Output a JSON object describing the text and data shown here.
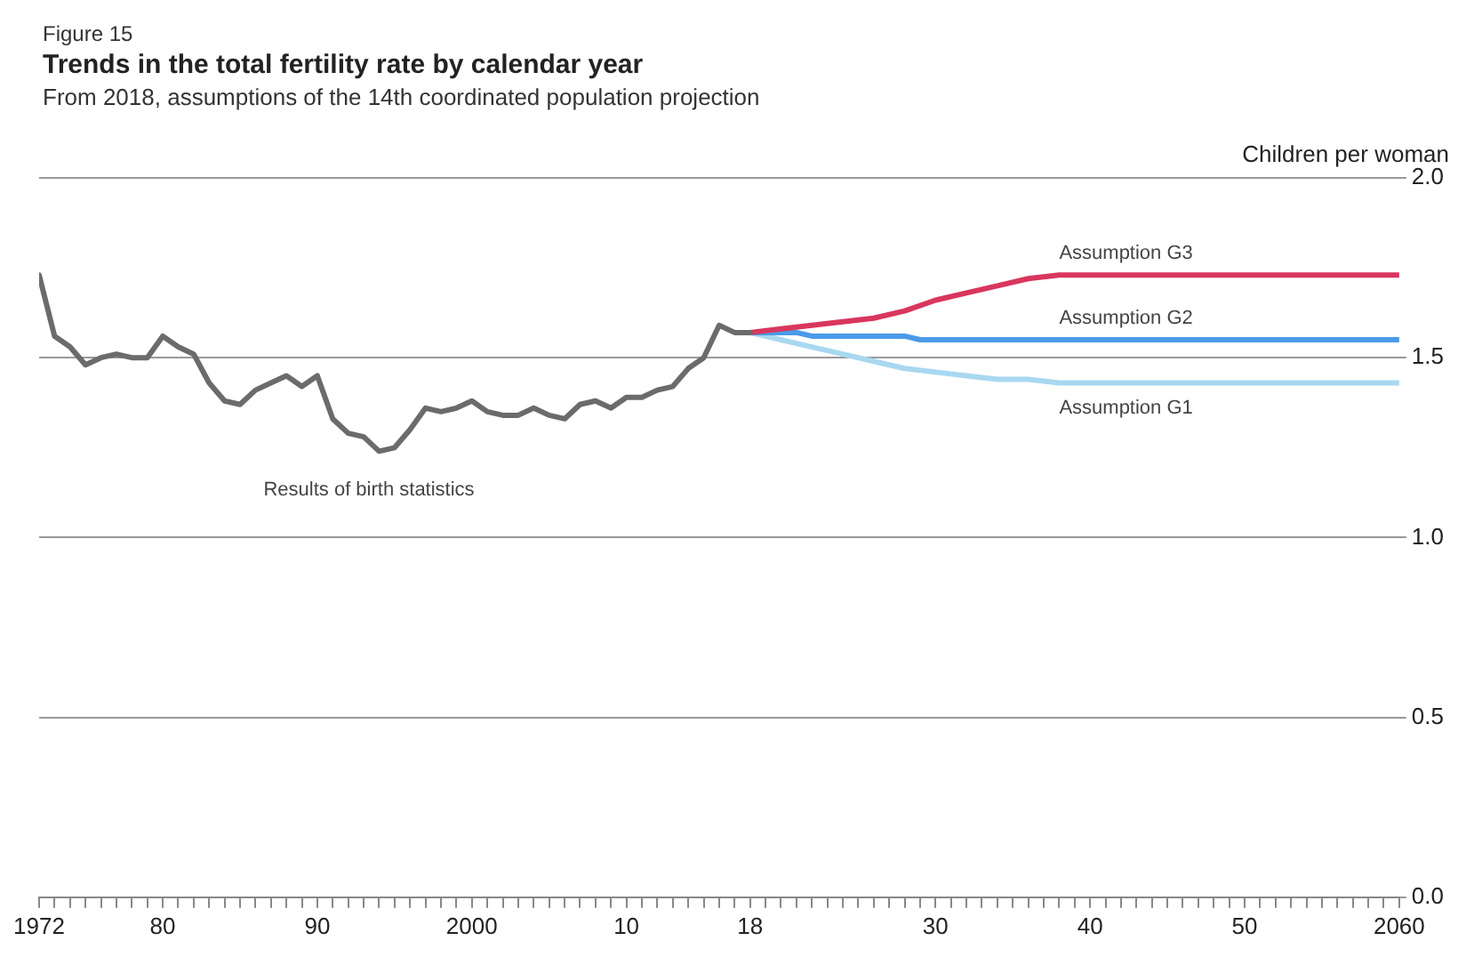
{
  "chart_data": {
    "type": "line",
    "title": "Trends in the total fertility rate by calendar year",
    "subtitle": "From 2018, assumptions of the 14th coordinated population projection",
    "annotations": [
      "Figure 15"
    ],
    "ylabel": "Children per woman",
    "xlim": [
      1972,
      2060
    ],
    "ylim": [
      0,
      2.0
    ],
    "xticks": [
      {
        "value": 1972,
        "label": "1972"
      },
      {
        "value": 1973,
        "label": null
      },
      {
        "value": 1974,
        "label": null
      },
      {
        "value": 1975,
        "label": null
      },
      {
        "value": 1976,
        "label": null
      },
      {
        "value": 1977,
        "label": null
      },
      {
        "value": 1978,
        "label": null
      },
      {
        "value": 1979,
        "label": null
      },
      {
        "value": 1980,
        "label": "80"
      },
      {
        "value": 1981,
        "label": null
      },
      {
        "value": 1982,
        "label": null
      },
      {
        "value": 1983,
        "label": null
      },
      {
        "value": 1984,
        "label": null
      },
      {
        "value": 1985,
        "label": null
      },
      {
        "value": 1986,
        "label": null
      },
      {
        "value": 1987,
        "label": null
      },
      {
        "value": 1988,
        "label": null
      },
      {
        "value": 1989,
        "label": null
      },
      {
        "value": 1990,
        "label": "90"
      },
      {
        "value": 1991,
        "label": null
      },
      {
        "value": 1992,
        "label": null
      },
      {
        "value": 1993,
        "label": null
      },
      {
        "value": 1994,
        "label": null
      },
      {
        "value": 1995,
        "label": null
      },
      {
        "value": 1996,
        "label": null
      },
      {
        "value": 1997,
        "label": null
      },
      {
        "value": 1998,
        "label": null
      },
      {
        "value": 1999,
        "label": null
      },
      {
        "value": 2000,
        "label": "2000"
      },
      {
        "value": 2001,
        "label": null
      },
      {
        "value": 2002,
        "label": null
      },
      {
        "value": 2003,
        "label": null
      },
      {
        "value": 2004,
        "label": null
      },
      {
        "value": 2005,
        "label": null
      },
      {
        "value": 2006,
        "label": null
      },
      {
        "value": 2007,
        "label": null
      },
      {
        "value": 2008,
        "label": null
      },
      {
        "value": 2009,
        "label": null
      },
      {
        "value": 2010,
        "label": "10"
      },
      {
        "value": 2011,
        "label": null
      },
      {
        "value": 2012,
        "label": null
      },
      {
        "value": 2013,
        "label": null
      },
      {
        "value": 2014,
        "label": null
      },
      {
        "value": 2015,
        "label": null
      },
      {
        "value": 2016,
        "label": null
      },
      {
        "value": 2017,
        "label": null
      },
      {
        "value": 2018,
        "label": "18"
      },
      {
        "value": 2019,
        "label": null
      },
      {
        "value": 2020,
        "label": null
      },
      {
        "value": 2021,
        "label": null
      },
      {
        "value": 2022,
        "label": null
      },
      {
        "value": 2023,
        "label": null
      },
      {
        "value": 2024,
        "label": null
      },
      {
        "value": 2025,
        "label": null
      },
      {
        "value": 2026,
        "label": null
      },
      {
        "value": 2027,
        "label": null
      },
      {
        "value": 2028,
        "label": null
      },
      {
        "value": 2029,
        "label": null
      },
      {
        "value": 2030,
        "label": "30"
      },
      {
        "value": 2031,
        "label": null
      },
      {
        "value": 2032,
        "label": null
      },
      {
        "value": 2033,
        "label": null
      },
      {
        "value": 2034,
        "label": null
      },
      {
        "value": 2035,
        "label": null
      },
      {
        "value": 2036,
        "label": null
      },
      {
        "value": 2037,
        "label": null
      },
      {
        "value": 2038,
        "label": null
      },
      {
        "value": 2039,
        "label": null
      },
      {
        "value": 2040,
        "label": "40"
      },
      {
        "value": 2041,
        "label": null
      },
      {
        "value": 2042,
        "label": null
      },
      {
        "value": 2043,
        "label": null
      },
      {
        "value": 2044,
        "label": null
      },
      {
        "value": 2045,
        "label": null
      },
      {
        "value": 2046,
        "label": null
      },
      {
        "value": 2047,
        "label": null
      },
      {
        "value": 2048,
        "label": null
      },
      {
        "value": 2049,
        "label": null
      },
      {
        "value": 2050,
        "label": "50"
      },
      {
        "value": 2051,
        "label": null
      },
      {
        "value": 2052,
        "label": null
      },
      {
        "value": 2053,
        "label": null
      },
      {
        "value": 2054,
        "label": null
      },
      {
        "value": 2055,
        "label": null
      },
      {
        "value": 2056,
        "label": null
      },
      {
        "value": 2057,
        "label": null
      },
      {
        "value": 2058,
        "label": null
      },
      {
        "value": 2059,
        "label": null
      },
      {
        "value": 2060,
        "label": "2060"
      }
    ],
    "yticks": [
      {
        "value": 0,
        "label": "0.0"
      },
      {
        "value": 0.5,
        "label": "0.5"
      },
      {
        "value": 1.0,
        "label": "1.0"
      },
      {
        "value": 1.5,
        "label": "1.5"
      },
      {
        "value": 2.0,
        "label": "2.0"
      }
    ],
    "grid": "y",
    "legend": false,
    "marker": "none",
    "line_style": "solid",
    "series": [
      {
        "name": "Results of birth statistics",
        "color": "#6b6b6b",
        "x": [
          1972,
          1973,
          1974,
          1975,
          1976,
          1977,
          1978,
          1979,
          1980,
          1981,
          1982,
          1983,
          1984,
          1985,
          1986,
          1987,
          1988,
          1989,
          1990,
          1991,
          1992,
          1993,
          1994,
          1995,
          1996,
          1997,
          1998,
          1999,
          2000,
          2001,
          2002,
          2003,
          2004,
          2005,
          2006,
          2007,
          2008,
          2009,
          2010,
          2011,
          2012,
          2013,
          2014,
          2015,
          2016,
          2017,
          2018
        ],
        "values": [
          1.73,
          1.56,
          1.53,
          1.48,
          1.5,
          1.51,
          1.5,
          1.5,
          1.56,
          1.53,
          1.51,
          1.43,
          1.38,
          1.37,
          1.41,
          1.43,
          1.45,
          1.42,
          1.45,
          1.33,
          1.29,
          1.28,
          1.24,
          1.25,
          1.3,
          1.36,
          1.35,
          1.36,
          1.38,
          1.35,
          1.34,
          1.34,
          1.36,
          1.34,
          1.33,
          1.37,
          1.38,
          1.36,
          1.39,
          1.39,
          1.41,
          1.42,
          1.47,
          1.5,
          1.59,
          1.57,
          1.57
        ]
      },
      {
        "name": "Assumption G3",
        "color": "#d9365e",
        "x": [
          2018,
          2020,
          2022,
          2024,
          2026,
          2028,
          2030,
          2032,
          2034,
          2036,
          2038,
          2060
        ],
        "values": [
          1.57,
          1.58,
          1.59,
          1.6,
          1.61,
          1.63,
          1.66,
          1.68,
          1.7,
          1.72,
          1.73,
          1.73
        ]
      },
      {
        "name": "Assumption G2",
        "color": "#4a9be8",
        "x": [
          2018,
          2021,
          2022,
          2028,
          2029,
          2060
        ],
        "values": [
          1.57,
          1.57,
          1.56,
          1.56,
          1.55,
          1.55
        ]
      },
      {
        "name": "Assumption G1",
        "color": "#a8d8f0",
        "x": [
          2018,
          2020,
          2022,
          2024,
          2026,
          2028,
          2030,
          2032,
          2034,
          2036,
          2038,
          2060
        ],
        "values": [
          1.57,
          1.55,
          1.53,
          1.51,
          1.49,
          1.47,
          1.46,
          1.45,
          1.44,
          1.44,
          1.43,
          1.43
        ]
      }
    ]
  }
}
